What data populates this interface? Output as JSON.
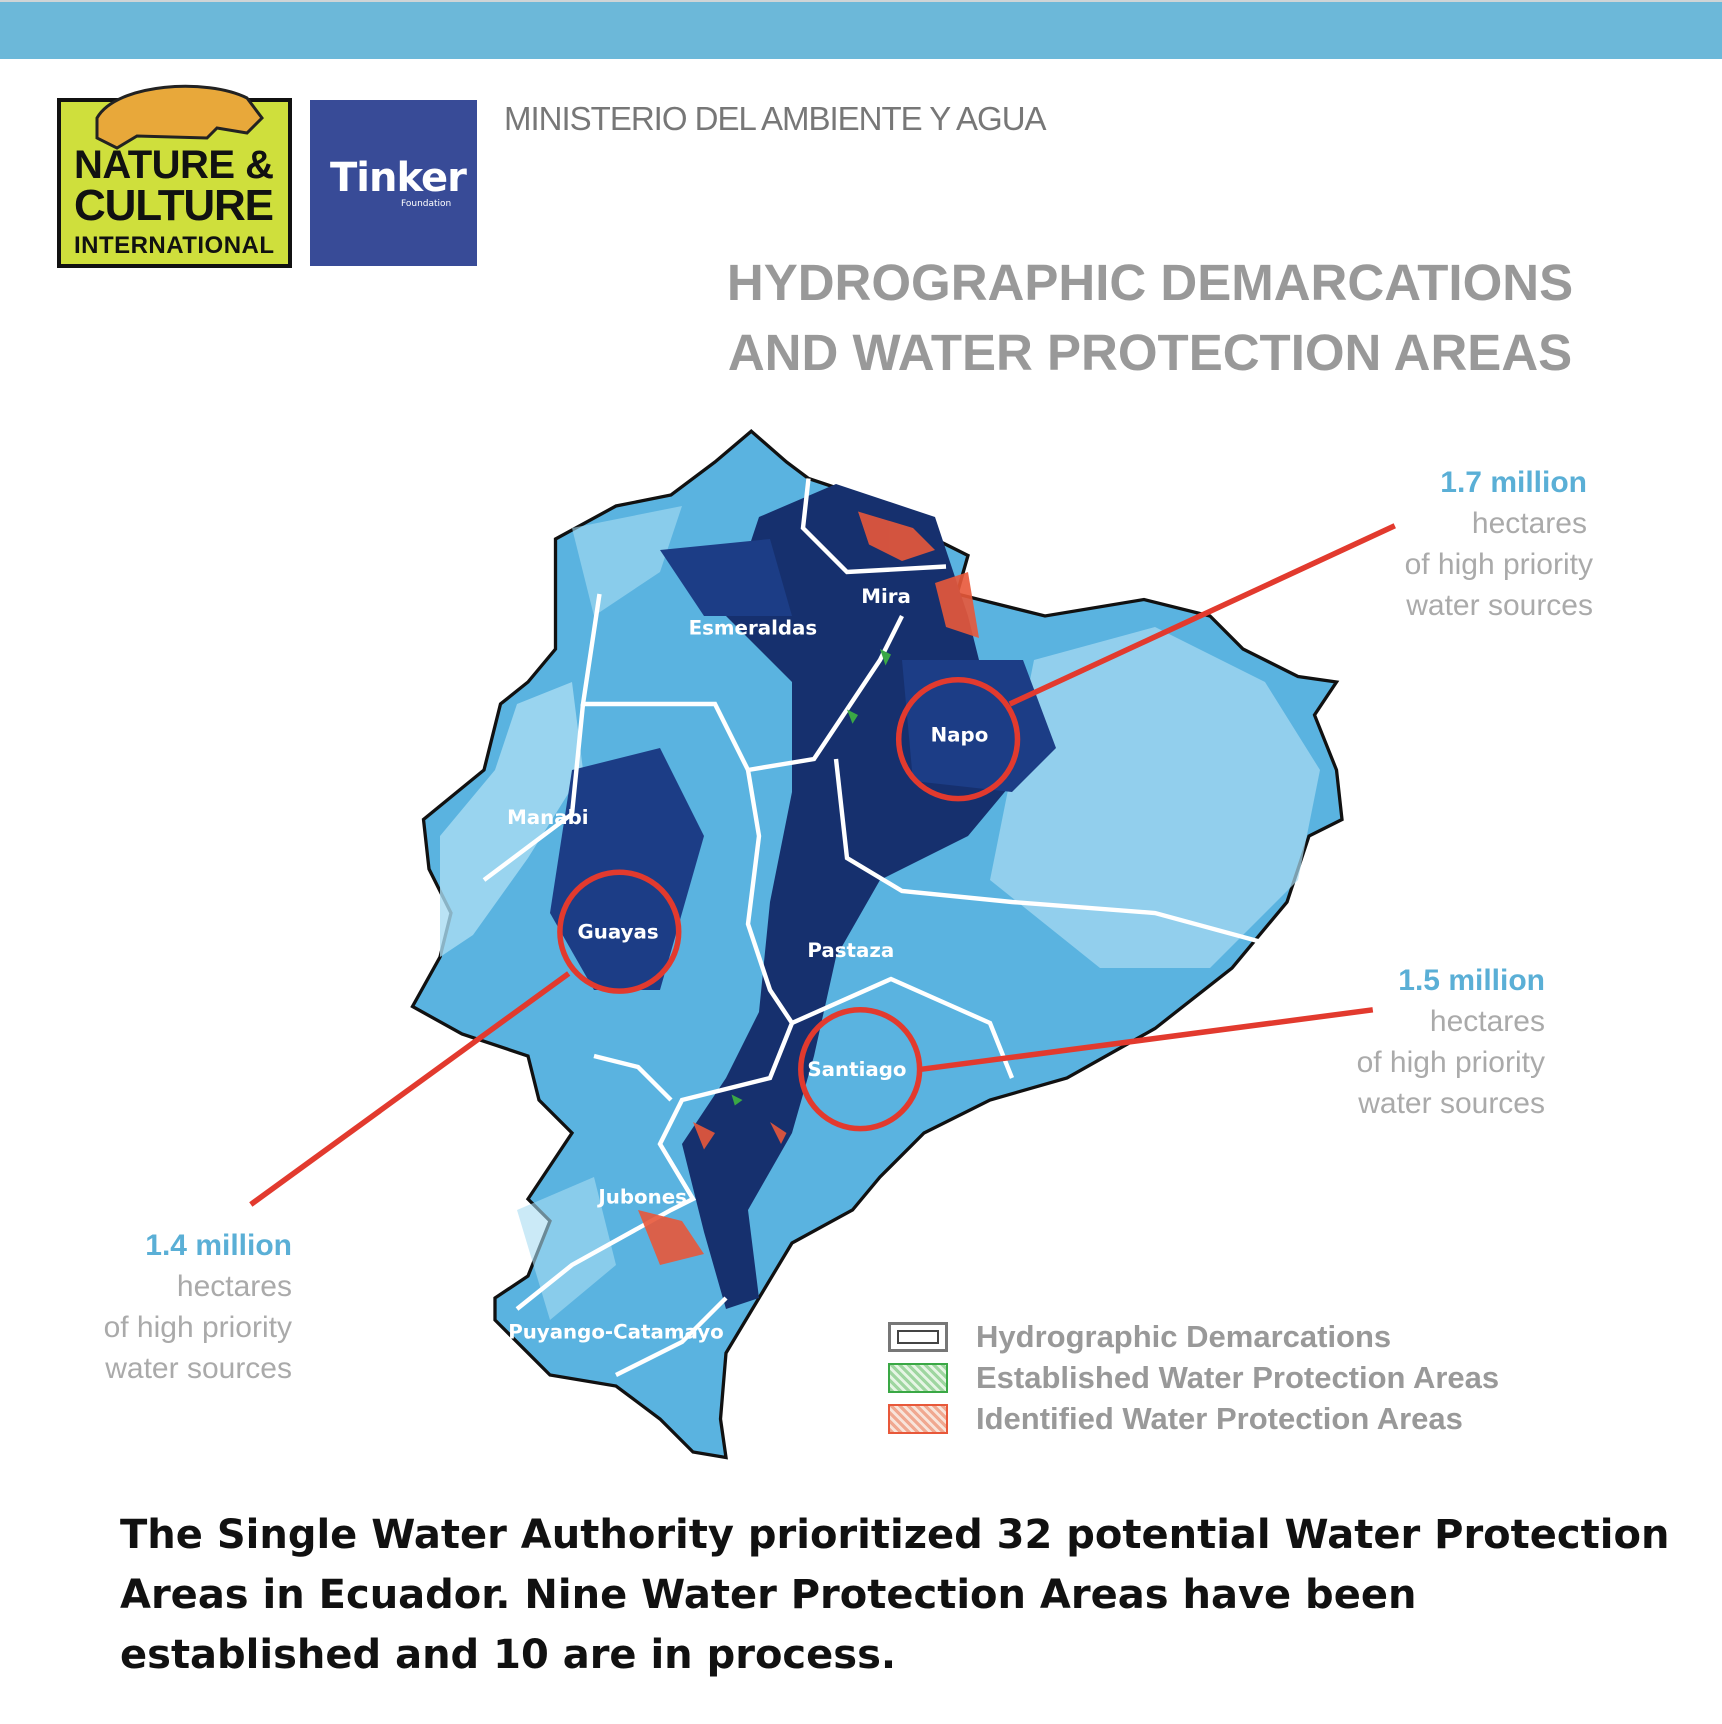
{
  "header": {
    "ministry": "MINISTERIO DEL AMBIENTE Y AGUA",
    "logos": {
      "nci": "NATURE & CULTURE INTERNATIONAL",
      "tinker": "Tinker",
      "tinker_sub": "Foundation"
    },
    "title_line1": "HYDROGRAPHIC DEMARCATIONS",
    "title_line2": "AND WATER PROTECTION AREAS"
  },
  "colors": {
    "top_bar": "#6cb8d9",
    "accent_text": "#5aafd6",
    "circle_line": "#e23a2e",
    "tinker_bg": "#384b97",
    "nci_bg": "#cfdf3c"
  },
  "stats": [
    {
      "value": "1.7 million",
      "line1": "hectares",
      "line2": "of high priority",
      "line3": "water sources"
    },
    {
      "value": "1.5 million",
      "line1": "hectares",
      "line2": "of high priority",
      "line3": "water sources"
    },
    {
      "value": "1.4 million",
      "line1": "hectares",
      "line2": "of high priority",
      "line3": "water sources"
    }
  ],
  "map": {
    "regions": [
      "Esmeraldas",
      "Mira",
      "Napo",
      "Manabi",
      "Guayas",
      "Pastaza",
      "Santiago",
      "Jubones",
      "Puyango-Catamayo"
    ]
  },
  "legend": [
    {
      "label": "Hydrographic Demarcations"
    },
    {
      "label": "Established Water Protection Areas"
    },
    {
      "label": "Identified Water Protection Areas"
    }
  ],
  "footer": {
    "text": "The Single Water Authority prioritized 32 potential Water Protection Areas in Ecuador. Nine Water Protection Areas have been established and 10 are in process."
  }
}
